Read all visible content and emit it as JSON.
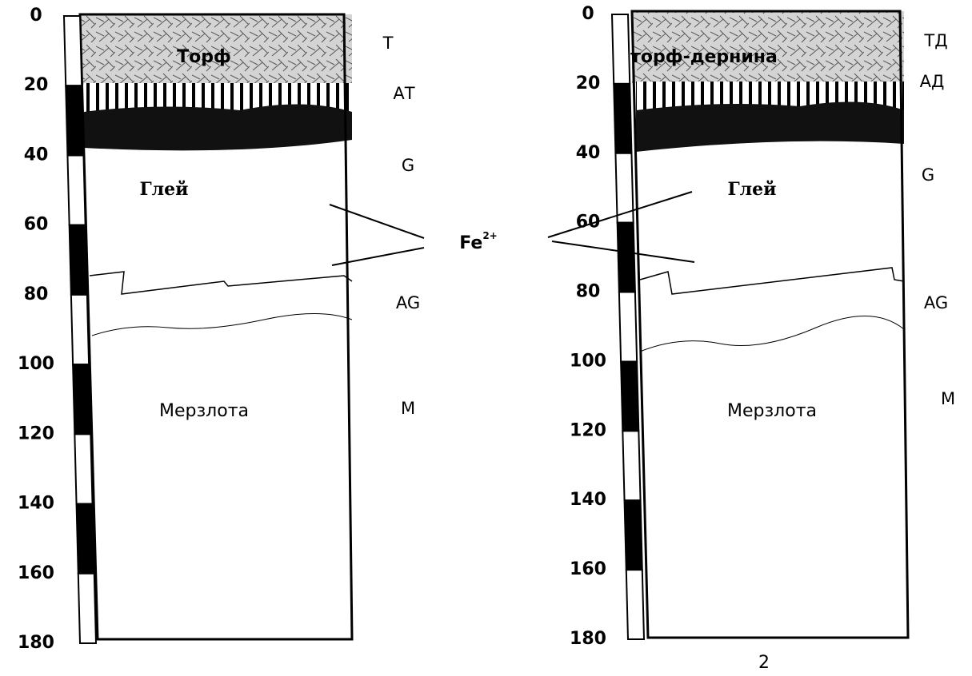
{
  "profiles": [
    {
      "depth_scale": [
        0,
        20,
        40,
        60,
        80,
        100,
        120,
        140,
        160,
        180
      ],
      "horizons": [
        "Т",
        "АТ",
        "G",
        "AG",
        "M"
      ],
      "layers": [
        "Торф",
        "Глей",
        "Мерзлота"
      ]
    },
    {
      "depth_scale": [
        0,
        20,
        40,
        60,
        80,
        100,
        120,
        140,
        160,
        180
      ],
      "horizons": [
        "ТД",
        "АД",
        "G",
        "AG",
        "M"
      ],
      "layers": [
        "торф-дернина",
        "Глей",
        "Мерзлота"
      ],
      "caption": "2"
    }
  ],
  "annotation": {
    "label": "Fe",
    "superscript": "2+"
  }
}
